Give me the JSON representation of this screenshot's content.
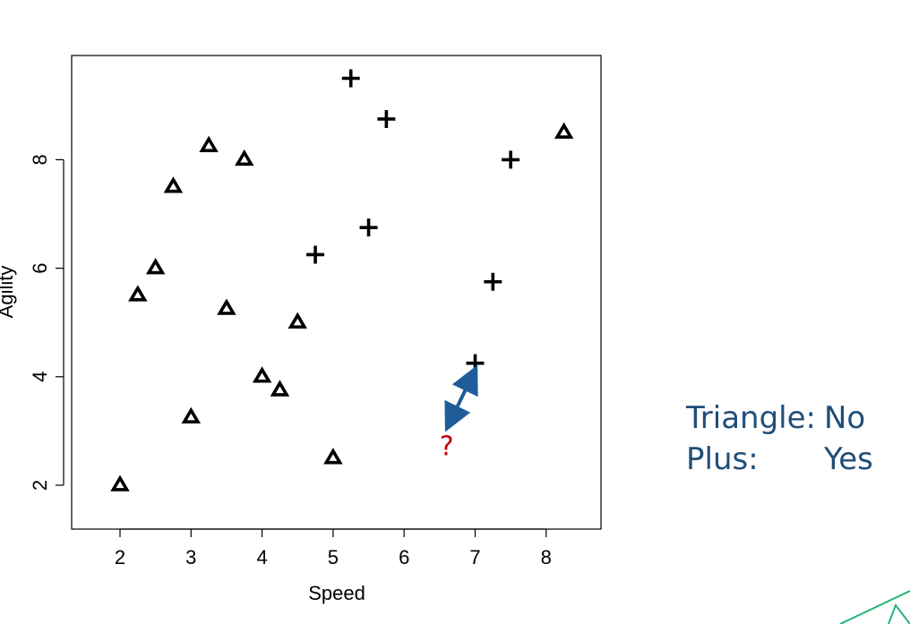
{
  "chart_data": {
    "type": "scatter",
    "title": "",
    "xlabel": "Speed",
    "ylabel": "Agility",
    "xlim": [
      1.4,
      8.8
    ],
    "ylim": [
      1.2,
      9.8
    ],
    "xticks": [
      2,
      3,
      4,
      5,
      6,
      7,
      8
    ],
    "yticks": [
      2,
      4,
      6,
      8
    ],
    "grid": false,
    "series": [
      {
        "marker": "triangle",
        "points": [
          {
            "x": 2.0,
            "y": 2.0
          },
          {
            "x": 2.25,
            "y": 5.5
          },
          {
            "x": 2.5,
            "y": 6.0
          },
          {
            "x": 2.75,
            "y": 7.5
          },
          {
            "x": 3.0,
            "y": 3.25
          },
          {
            "x": 3.25,
            "y": 8.25
          },
          {
            "x": 3.5,
            "y": 5.25
          },
          {
            "x": 3.75,
            "y": 8.0
          },
          {
            "x": 4.0,
            "y": 4.0
          },
          {
            "x": 4.25,
            "y": 3.75
          },
          {
            "x": 4.5,
            "y": 5.0
          },
          {
            "x": 5.0,
            "y": 2.5
          },
          {
            "x": 8.25,
            "y": 8.5
          }
        ]
      },
      {
        "marker": "plus",
        "points": [
          {
            "x": 4.75,
            "y": 6.25
          },
          {
            "x": 5.25,
            "y": 9.5
          },
          {
            "x": 5.5,
            "y": 6.75
          },
          {
            "x": 5.75,
            "y": 8.75
          },
          {
            "x": 7.0,
            "y": 4.25
          },
          {
            "x": 7.25,
            "y": 5.75
          },
          {
            "x": 7.5,
            "y": 8.0
          }
        ]
      }
    ],
    "query_point": {
      "label": "?",
      "x": 6.6,
      "y": 2.85,
      "color": "#c00000"
    },
    "nearest_link": {
      "from": {
        "x": 6.62,
        "y": 3.1
      },
      "to": {
        "x": 6.99,
        "y": 4.1
      },
      "color": "#1f5c99"
    }
  },
  "legend": {
    "color": "#1f4e79",
    "rows": [
      {
        "label": "Triangle:",
        "value": "No"
      },
      {
        "label": "Plus:",
        "value": "Yes"
      }
    ]
  },
  "decoration": {
    "color": "#22b573"
  }
}
